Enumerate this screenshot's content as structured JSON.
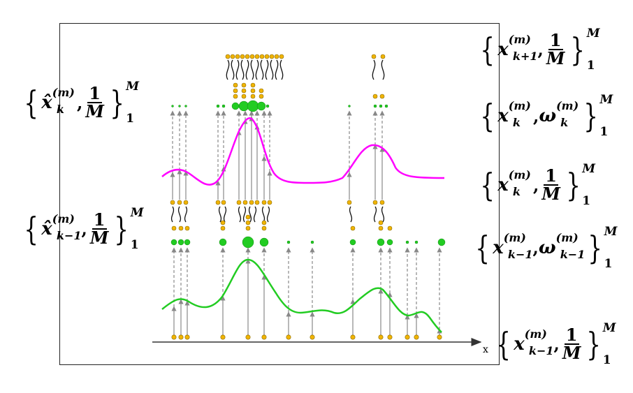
{
  "axis": {
    "x_label": "x"
  },
  "labels": {
    "top_right": {
      "sym": "x",
      "sup": "(m)",
      "sub": "k+1",
      "weight_num": "1",
      "weight_den": "M",
      "upper": "M",
      "lower": "1"
    },
    "mid_right_1": {
      "sym": "x",
      "sup": "(m)",
      "sub": "k",
      "w_sym": "ω",
      "w_sup": "(m)",
      "w_sub": "k",
      "upper": "M",
      "lower": "1"
    },
    "mid_right_2": {
      "sym": "x",
      "sup": "(m)",
      "sub": "k",
      "weight_num": "1",
      "weight_den": "M",
      "upper": "M",
      "lower": "1"
    },
    "mid_right_3": {
      "sym": "x",
      "sup": "(m)",
      "sub": "k−1",
      "w_sym": "ω",
      "w_sup": "(m)",
      "w_sub": "k−1",
      "upper": "M",
      "lower": "1"
    },
    "bottom_right": {
      "sym": "x",
      "sup": "(m)",
      "sub": "k−1",
      "weight_num": "1",
      "weight_den": "M",
      "upper": "M",
      "lower": "1"
    },
    "left_upper": {
      "sym": "x̂",
      "sup": "(m)",
      "sub": "k",
      "weight_num": "1",
      "weight_den": "M",
      "upper": "M",
      "lower": "1"
    },
    "left_lower": {
      "sym": "x̂",
      "sup": "(m)",
      "sub": "k−1",
      "weight_num": "1",
      "weight_den": "M",
      "upper": "M",
      "lower": "1"
    }
  },
  "colors": {
    "particle": "#f0b400",
    "particle_stroke": "#8a6a00",
    "weighted": "#22cc22",
    "likelihood_prior": "#22cc22",
    "likelihood_post": "#ff00ff",
    "arrow": "#888888"
  }
}
